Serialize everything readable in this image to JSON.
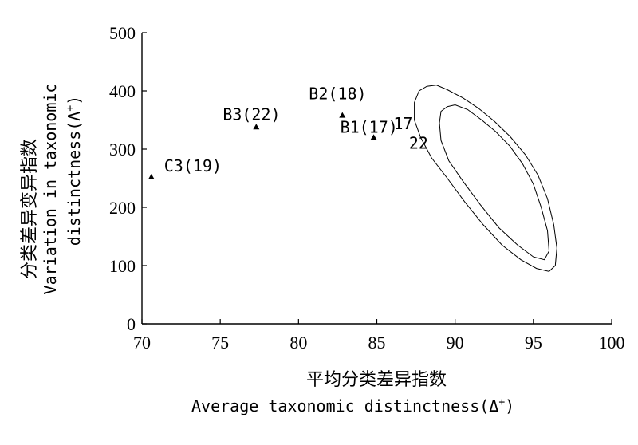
{
  "chart_data": {
    "type": "scatter",
    "title": "",
    "xlabel_cn": "平均分类差异指数",
    "xlabel_en": "Average taxonomic distinctness",
    "xlabel_symbol": "Δ",
    "xlabel_symbol_sup": "+",
    "ylabel_cn": "分类差异变异指数",
    "ylabel_en_line1": "Variation in taxonomic",
    "ylabel_en_line2": "distinctness",
    "ylabel_symbol": "Λ",
    "ylabel_symbol_sup": "+",
    "xlim": [
      70,
      100
    ],
    "ylim": [
      0,
      500
    ],
    "xticks": [
      70,
      75,
      80,
      85,
      90,
      95,
      100
    ],
    "yticks": [
      0,
      100,
      200,
      300,
      400,
      500
    ],
    "grid": false,
    "points": [
      {
        "label": "C3(19)",
        "x": 70.6,
        "y": 252
      },
      {
        "label": "B3(22)",
        "x": 77.3,
        "y": 338
      },
      {
        "label": "B2(18)",
        "x": 82.8,
        "y": 358
      },
      {
        "label": "B1(17)",
        "x": 84.8,
        "y": 320
      }
    ],
    "contours": [
      {
        "label": "17",
        "points": [
          [
            88.2,
            408
          ],
          [
            88.8,
            410
          ],
          [
            89.5,
            402
          ],
          [
            90.5,
            388
          ],
          [
            91.5,
            370
          ],
          [
            92.5,
            348
          ],
          [
            93.5,
            322
          ],
          [
            94.5,
            290
          ],
          [
            95.3,
            255
          ],
          [
            95.9,
            215
          ],
          [
            96.3,
            170
          ],
          [
            96.5,
            130
          ],
          [
            96.4,
            100
          ],
          [
            96.0,
            90
          ],
          [
            95.2,
            95
          ],
          [
            94.2,
            110
          ],
          [
            93.0,
            135
          ],
          [
            91.8,
            170
          ],
          [
            90.6,
            210
          ],
          [
            89.5,
            250
          ],
          [
            88.5,
            285
          ],
          [
            87.8,
            320
          ],
          [
            87.4,
            350
          ],
          [
            87.4,
            380
          ],
          [
            87.7,
            400
          ],
          [
            88.2,
            408
          ]
        ]
      },
      {
        "label": "22",
        "points": [
          [
            89.5,
            373
          ],
          [
            90.0,
            376
          ],
          [
            90.8,
            368
          ],
          [
            91.7,
            350
          ],
          [
            92.6,
            330
          ],
          [
            93.5,
            305
          ],
          [
            94.3,
            275
          ],
          [
            95.0,
            240
          ],
          [
            95.5,
            200
          ],
          [
            95.9,
            160
          ],
          [
            96.0,
            125
          ],
          [
            95.7,
            110
          ],
          [
            95.0,
            115
          ],
          [
            94.0,
            135
          ],
          [
            92.8,
            165
          ],
          [
            91.6,
            205
          ],
          [
            90.5,
            245
          ],
          [
            89.6,
            280
          ],
          [
            89.1,
            315
          ],
          [
            89.0,
            345
          ],
          [
            89.1,
            365
          ],
          [
            89.5,
            373
          ]
        ]
      }
    ]
  }
}
